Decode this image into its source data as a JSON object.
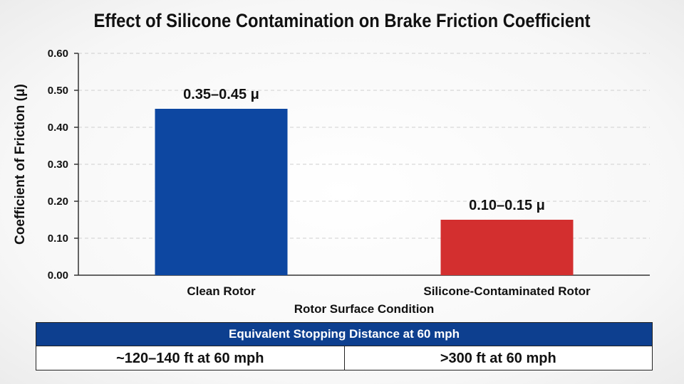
{
  "colors": {
    "clean": "#0d47a1",
    "contaminated": "#d32f2f",
    "table_header": "#0d3f8f"
  },
  "chart_data": {
    "type": "bar",
    "title": "Effect of Silicone Contamination on Brake Friction Coefficient",
    "xlabel": "Rotor Surface Condition",
    "ylabel": "Coefficient of Friction (μ)",
    "ylim": [
      0,
      0.6
    ],
    "yticks": [
      "0.00",
      "0.10",
      "0.20",
      "0.30",
      "0.40",
      "0.50",
      "0.60"
    ],
    "grid": true,
    "categories": [
      "Clean Rotor",
      "Silicone-Contaminated Rotor"
    ],
    "values": [
      0.45,
      0.15
    ],
    "bar_labels": [
      "0.35–0.45 μ",
      "0.10–0.15 μ"
    ]
  },
  "table": {
    "header": "Equivalent Stopping Distance at 60 mph",
    "cells": [
      "~120–140 ft at 60 mph",
      ">300 ft at 60 mph"
    ]
  }
}
